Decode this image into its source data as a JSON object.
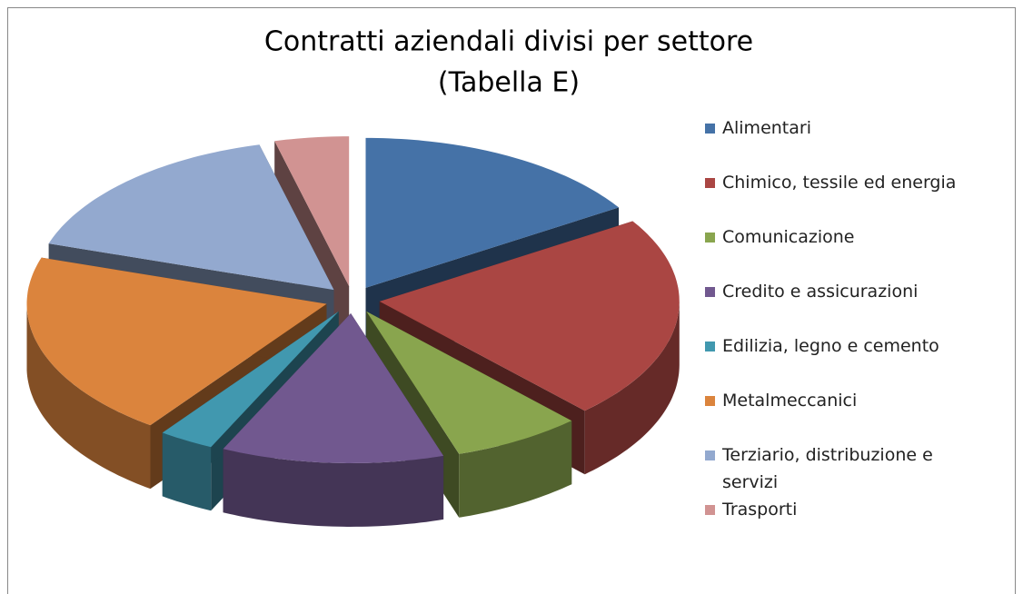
{
  "chart_data": {
    "type": "pie",
    "title": "Contratti aziendali divisi per settore",
    "subtitle": "(Tabella E)",
    "categories": [
      "Alimentari",
      "Chimico, tessile ed energia",
      "Comunicazione",
      "Credito e assicurazioni",
      "Edilizia, legno e cemento",
      "Metalmeccanici",
      "Terziario, distribuzione e servizi",
      "Trasporti"
    ],
    "values": [
      16,
      22,
      7,
      12,
      3,
      20,
      16,
      4
    ],
    "colors": [
      "#4572a7",
      "#aa4643",
      "#89a54e",
      "#71588f",
      "#4198af",
      "#db843d",
      "#93a9cf",
      "#d19392"
    ],
    "legend": "right"
  }
}
